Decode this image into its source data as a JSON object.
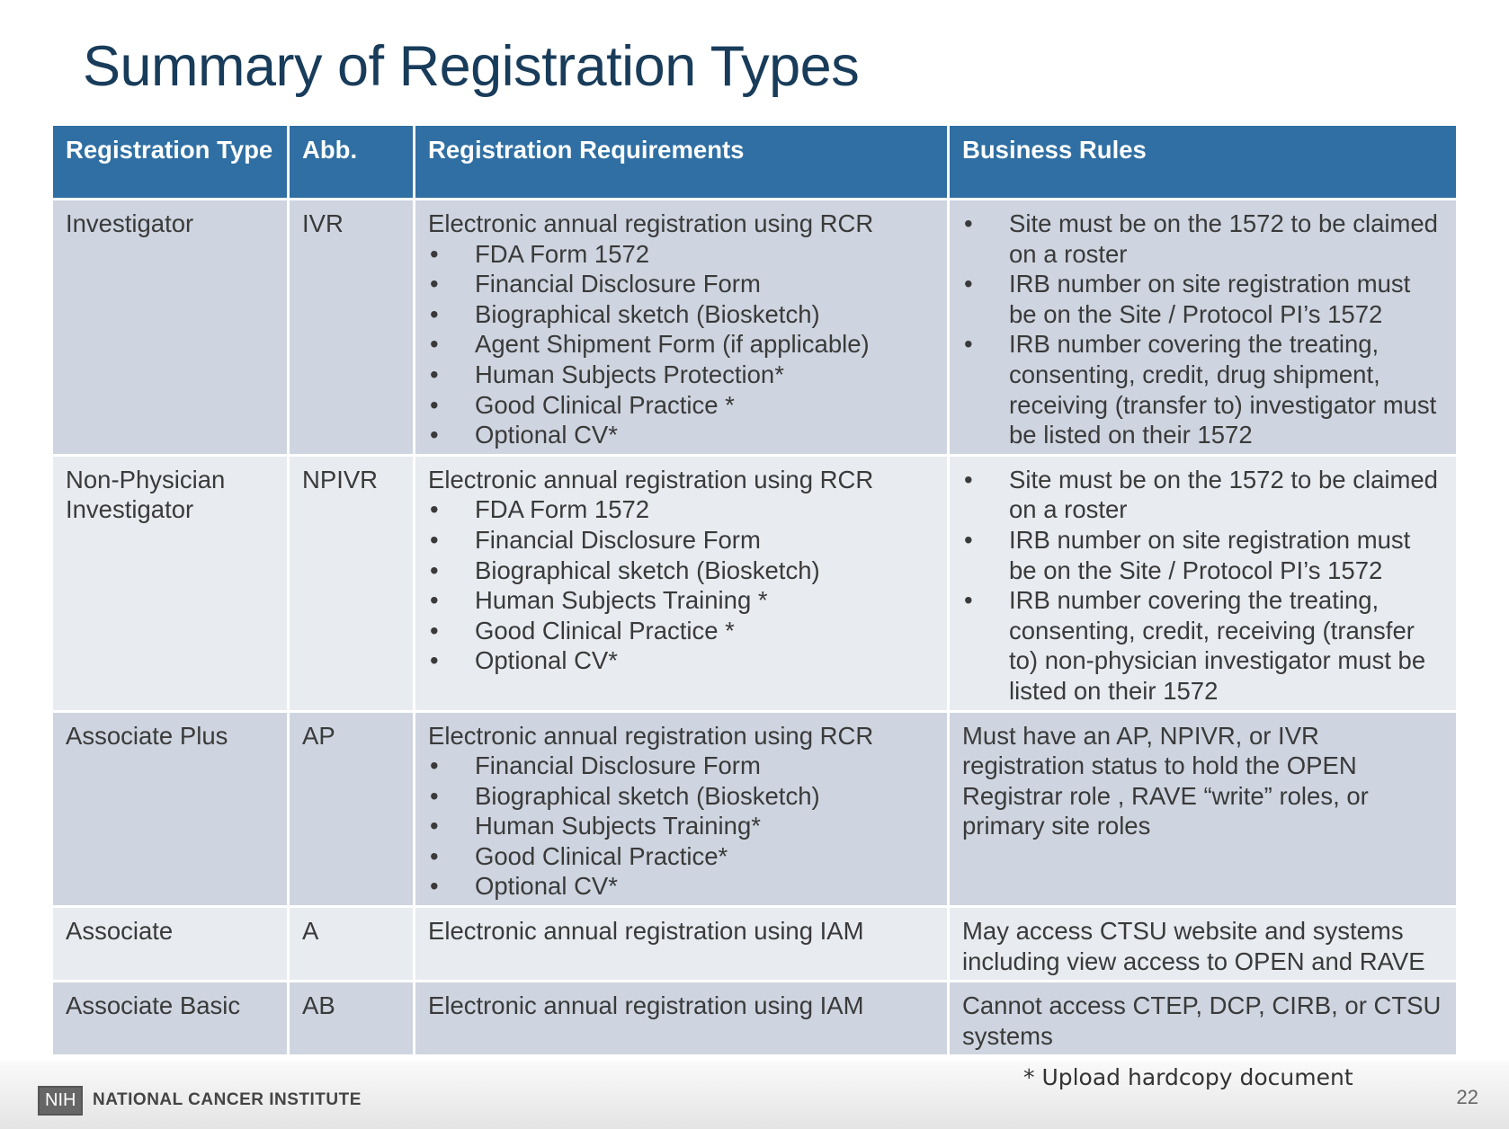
{
  "header": {
    "title": "Summary of Registration Types"
  },
  "table": {
    "columns": [
      "Registration Type",
      "Abb.",
      "Registration Requirements",
      "Business Rules"
    ],
    "rows": [
      {
        "type": "Investigator",
        "abb": "IVR",
        "requirements": {
          "intro": "Electronic annual registration using RCR",
          "items": [
            "FDA Form 1572",
            "Financial Disclosure Form",
            "Biographical sketch (Biosketch)",
            "Agent Shipment Form (if applicable)",
            "Human Subjects Protection*",
            "Good Clinical Practice *",
            "Optional CV*"
          ]
        },
        "rules": [
          "Site must be on the 1572 to be claimed on a roster",
          "IRB number on site registration must be on the Site / Protocol PI’s 1572",
          "IRB number covering the treating, consenting, credit, drug shipment, receiving (transfer to) investigator must be listed on their 1572"
        ]
      },
      {
        "type": "Non-Physician Investigator",
        "abb": "NPIVR",
        "requirements": {
          "intro": "Electronic annual registration using RCR",
          "items": [
            "FDA Form 1572",
            "Financial Disclosure Form",
            "Biographical sketch (Biosketch)",
            "Human Subjects Training *",
            "Good Clinical Practice *",
            "Optional CV*"
          ]
        },
        "rules": [
          "Site must be on the 1572 to be claimed on a roster",
          "IRB number on site registration must be on the Site / Protocol PI’s 1572",
          "IRB number covering the treating, consenting, credit, receiving (transfer to) non-physician investigator must be listed on their 1572"
        ]
      },
      {
        "type": "Associate Plus",
        "abb": "AP",
        "requirements": {
          "intro": "Electronic annual registration using RCR",
          "items": [
            "Financial Disclosure Form",
            "Biographical sketch (Biosketch)",
            "Human Subjects Training*",
            "Good Clinical Practice*",
            "Optional CV*"
          ]
        },
        "rules_text": "Must have an AP, NPIVR, or IVR registration status to hold the OPEN Registrar role , RAVE “write” roles, or primary site roles"
      },
      {
        "type": "Associate",
        "abb": "A",
        "requirements": {
          "intro": "Electronic annual registration using IAM"
        },
        "rules_text": "May access CTSU website and systems including view access to OPEN and RAVE"
      },
      {
        "type": "Associate Basic",
        "abb": "AB",
        "requirements": {
          "intro": "Electronic annual registration using IAM"
        },
        "rules_text": "Cannot access CTEP, DCP, CIRB, or CTSU systems"
      }
    ]
  },
  "footer": {
    "note": "* Upload hardcopy document",
    "logo": "NIH",
    "institute": "NATIONAL CANCER INSTITUTE",
    "page": "22"
  }
}
